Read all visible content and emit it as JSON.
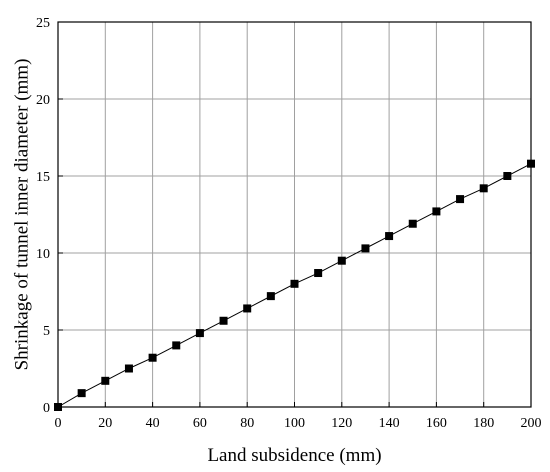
{
  "chart_data": {
    "type": "line",
    "xlabel": "Land subsidence (mm)",
    "ylabel": "Shrinkage of tunnel inner diameter (mm)",
    "xlim": [
      0,
      200
    ],
    "ylim": [
      0,
      25
    ],
    "xticks": [
      0,
      20,
      40,
      60,
      80,
      100,
      120,
      140,
      160,
      180,
      200
    ],
    "yticks": [
      0,
      5,
      10,
      15,
      20,
      25
    ],
    "grid": true,
    "marker": "square",
    "colors": {
      "line": "#000000",
      "marker": "#000000",
      "grid": "#a0a0a0"
    },
    "series": [
      {
        "x": [
          0,
          10,
          20,
          30,
          40,
          50,
          60,
          70,
          80,
          90,
          100,
          110,
          120,
          130,
          140,
          150,
          160,
          170,
          180,
          190,
          200
        ],
        "y": [
          0.0,
          0.9,
          1.7,
          2.5,
          3.2,
          4.0,
          4.8,
          5.6,
          6.4,
          7.2,
          8.0,
          8.7,
          9.5,
          10.3,
          11.1,
          11.9,
          12.7,
          13.5,
          14.2,
          15.0,
          15.8
        ]
      }
    ]
  }
}
